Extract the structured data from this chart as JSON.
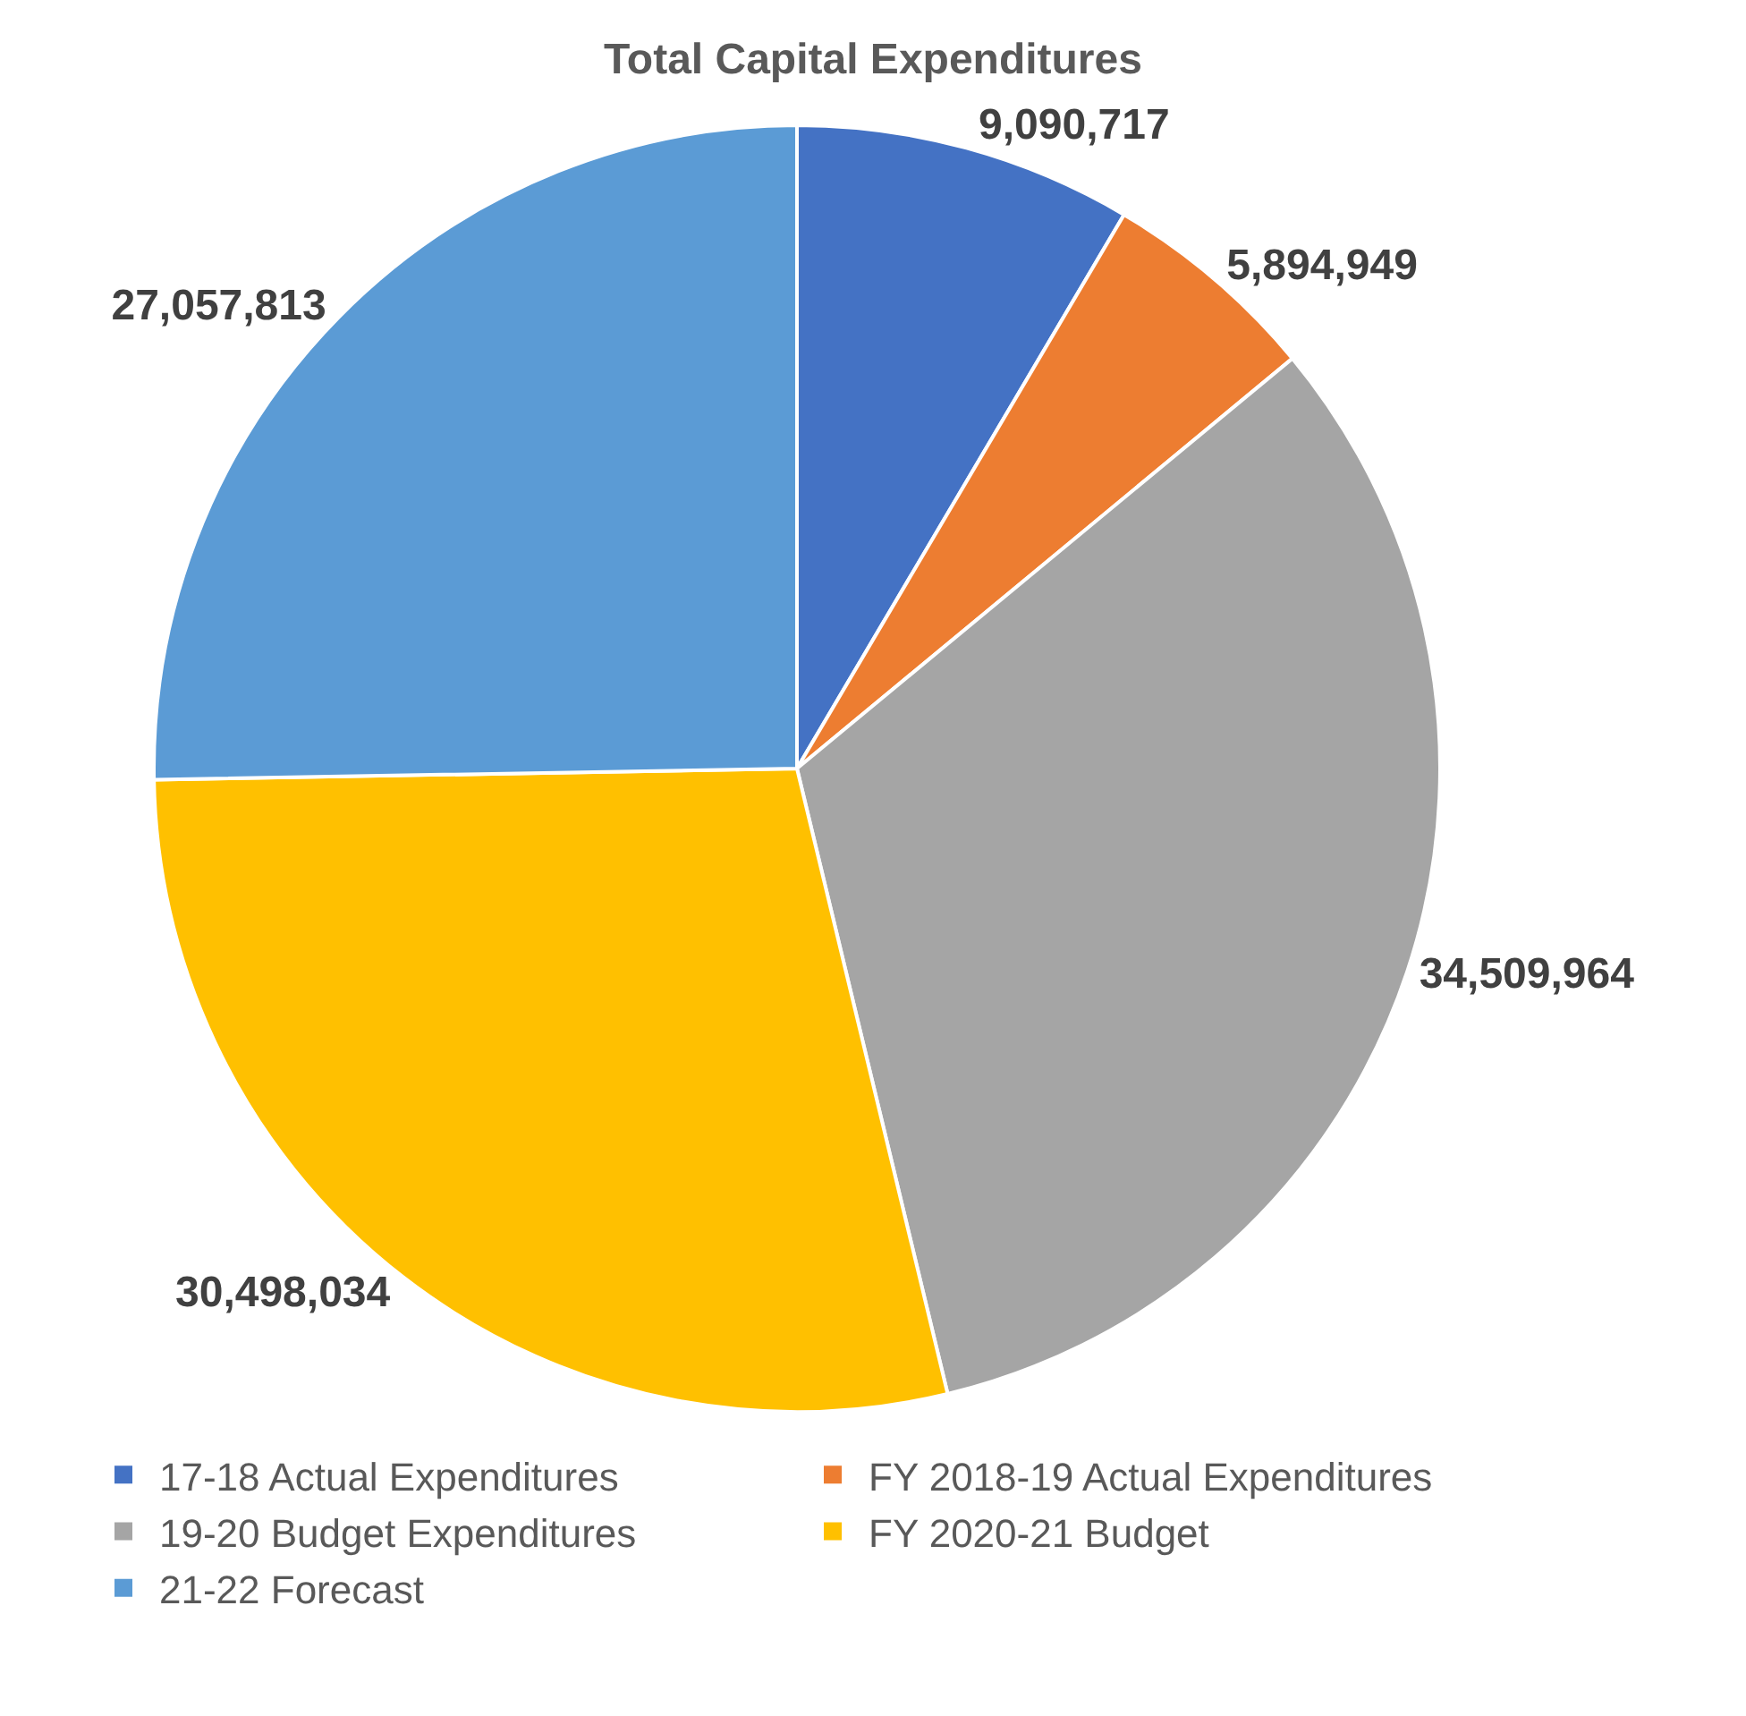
{
  "chart_data": {
    "type": "pie",
    "title": "Total Capital Expenditures",
    "categories": [
      "17-18 Actual Expenditures",
      "FY 2018-19 Actual Expenditures",
      "19-20 Budget Expenditures",
      "FY 2020-21 Budget",
      "21-22 Forecast"
    ],
    "values": [
      9090717,
      5894949,
      34509964,
      30498034,
      27057813
    ],
    "colors": [
      "#4472c4",
      "#ed7d31",
      "#a5a5a5",
      "#ffc000",
      "#5b9bd5"
    ],
    "value_labels": [
      "9,090,717",
      "5,894,949",
      "34,509,964",
      "30,498,034",
      "27,057,813"
    ],
    "legend": "bottom"
  }
}
